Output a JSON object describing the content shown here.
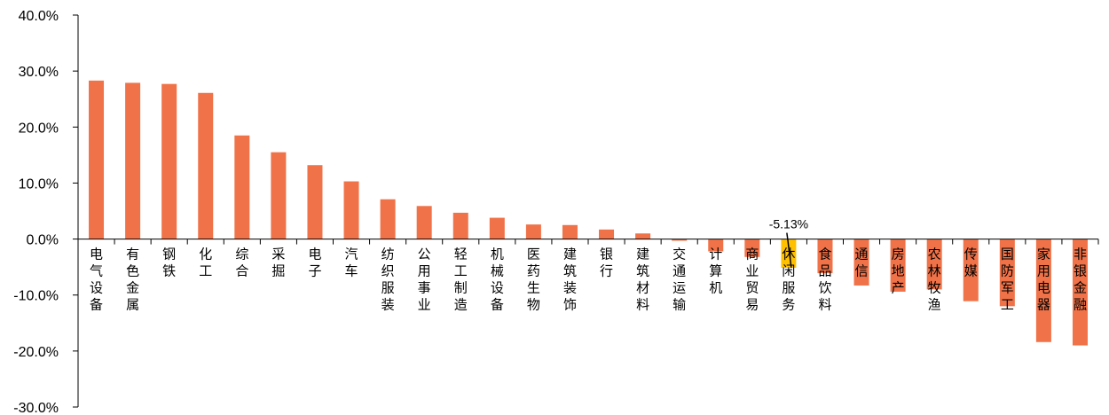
{
  "chart_data": {
    "type": "bar",
    "title": "",
    "xlabel": "",
    "ylabel": "",
    "ylim": [
      -30,
      40
    ],
    "y_ticks": [
      40,
      30,
      20,
      10,
      0,
      -10,
      -20,
      -30
    ],
    "y_tick_labels": [
      "40.0%",
      "30.0%",
      "20.0%",
      "10.0%",
      "0.0%",
      "-10.0%",
      "-20.0%",
      "-30.0%"
    ],
    "categories": [
      "电气设备",
      "有色金属",
      "钢铁",
      "化工",
      "综合",
      "采掘",
      "电子",
      "汽车",
      "纺织服装",
      "公用事业",
      "轻工制造",
      "机械设备",
      "医药生物",
      "建筑装饰",
      "银行",
      "建筑材料",
      "交通运输",
      "计算机",
      "商业贸易",
      "休闲服务",
      "食品饮料",
      "通信",
      "房地产",
      "农林牧渔",
      "传媒",
      "国防军工",
      "家用电器",
      "非银金融"
    ],
    "values": [
      28.3,
      27.9,
      27.7,
      26.1,
      18.5,
      15.5,
      13.2,
      10.3,
      7.1,
      5.9,
      4.7,
      3.8,
      2.6,
      2.5,
      1.7,
      1.0,
      -0.3,
      -2.2,
      -3.2,
      -5.13,
      -6.1,
      -8.3,
      -9.4,
      -9.0,
      -11.1,
      -12.0,
      -18.4,
      -19.0
    ],
    "highlight_index": 19,
    "annotations": [
      {
        "category": "休闲服务",
        "text": "-5.13%"
      }
    ],
    "bar_color": "#F07248",
    "highlight_color": "#FFC000",
    "grid": false,
    "legend": "none"
  }
}
